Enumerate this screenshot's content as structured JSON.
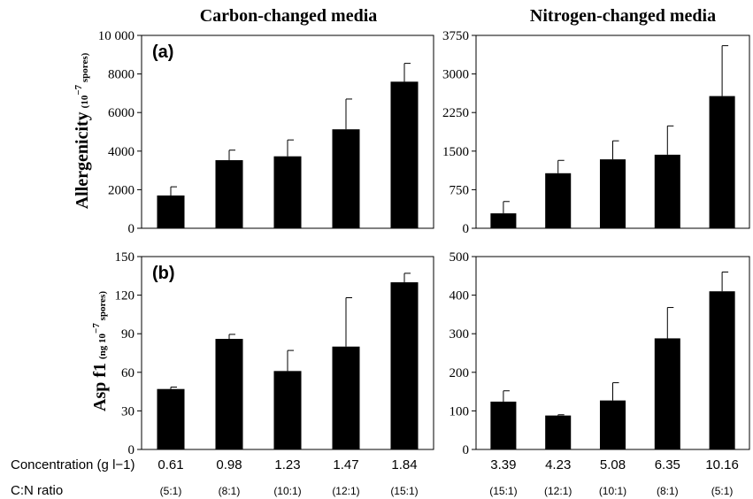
{
  "column_titles": [
    "Carbon-changed media",
    "Nitrogen-changed media"
  ],
  "y_labels": {
    "top": {
      "main": "Allergenicity",
      "sub": "(10",
      "sup": "−7",
      "tail": " spores)"
    },
    "bottom": {
      "main": "Asp f1",
      "sub": "(ng 10",
      "sup": "−7",
      "tail": " spores)"
    }
  },
  "row_labels": {
    "concentration": "Concentration (g l−1)",
    "ratio": "C:N ratio"
  },
  "chart_data": [
    {
      "type": "bar",
      "panel": "(a)",
      "panel_label": "(a)",
      "categories": [
        "0.61",
        "0.98",
        "1.23",
        "1.47",
        "1.84"
      ],
      "ratios": [
        "(5:1)",
        "(8:1)",
        "(10:1)",
        "(12:1)",
        "(15:1)"
      ],
      "values": [
        1700,
        3530,
        3730,
        5130,
        7600
      ],
      "errors": [
        450,
        520,
        850,
        1570,
        950
      ],
      "ylim": [
        0,
        10000
      ],
      "yticks": [
        0,
        2000,
        4000,
        6000,
        8000,
        10000
      ],
      "ytick_labels": [
        "0",
        "2000",
        "4000",
        "6000",
        "8000",
        "10 000"
      ]
    },
    {
      "type": "bar",
      "panel": "(a) nitrogen",
      "panel_label": "",
      "categories": [
        "3.39",
        "4.23",
        "5.08",
        "6.35",
        "10.16"
      ],
      "ratios": [
        "(15:1)",
        "(12:1)",
        "(10:1)",
        "(8:1)",
        "(5:1)"
      ],
      "values": [
        290,
        1070,
        1340,
        1430,
        2570
      ],
      "errors": [
        230,
        250,
        360,
        560,
        980
      ],
      "ylim": [
        0,
        3750
      ],
      "yticks": [
        0,
        750,
        1500,
        2250,
        3000,
        3750
      ],
      "ytick_labels": [
        "0",
        "750",
        "1500",
        "2250",
        "3000",
        "3750"
      ]
    },
    {
      "type": "bar",
      "panel": "(b)",
      "panel_label": "(b)",
      "categories": [
        "0.61",
        "0.98",
        "1.23",
        "1.47",
        "1.84"
      ],
      "ratios": [
        "(5:1)",
        "(8:1)",
        "(10:1)",
        "(12:1)",
        "(15:1)"
      ],
      "values": [
        47,
        86,
        61,
        80,
        130
      ],
      "errors": [
        1.5,
        3.5,
        16,
        38,
        7
      ],
      "ylim": [
        0,
        150
      ],
      "yticks": [
        0,
        30,
        60,
        90,
        120,
        150
      ],
      "ytick_labels": [
        "0",
        "30",
        "60",
        "90",
        "120",
        "150"
      ]
    },
    {
      "type": "bar",
      "panel": "(b) nitrogen",
      "panel_label": "",
      "categories": [
        "3.39",
        "4.23",
        "5.08",
        "6.35",
        "10.16"
      ],
      "ratios": [
        "(15:1)",
        "(12:1)",
        "(10:1)",
        "(8:1)",
        "(5:1)"
      ],
      "values": [
        124,
        88,
        127,
        288,
        410
      ],
      "errors": [
        28,
        2,
        46,
        80,
        50
      ],
      "ylim": [
        0,
        500
      ],
      "yticks": [
        0,
        100,
        200,
        300,
        400,
        500
      ],
      "ytick_labels": [
        "0",
        "100",
        "200",
        "300",
        "400",
        "500"
      ]
    }
  ]
}
